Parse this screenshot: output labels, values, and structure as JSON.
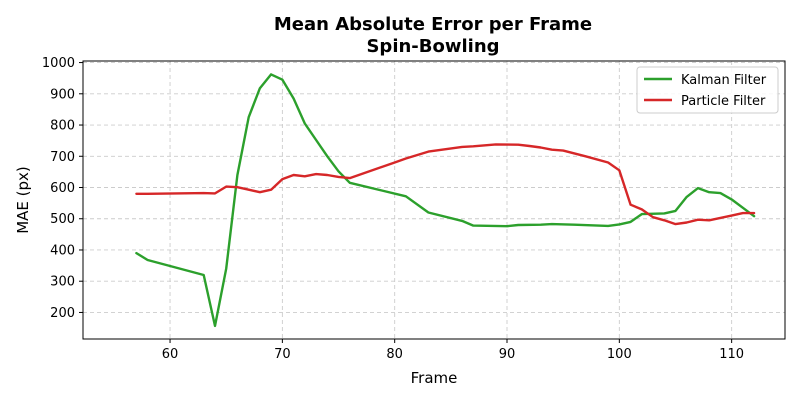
{
  "chart_data": {
    "type": "line",
    "title": "Mean Absolute Error per Frame",
    "subtitle": "Spin-Bowling",
    "xlabel": "Frame",
    "ylabel": "MAE (px)",
    "xlim": [
      52.25,
      114.75
    ],
    "ylim": [
      115,
      1005
    ],
    "xticks": [
      60,
      70,
      80,
      90,
      100,
      110
    ],
    "yticks": [
      200,
      300,
      400,
      500,
      600,
      700,
      800,
      900,
      1000
    ],
    "grid": true,
    "legend_position": "top-right",
    "series": [
      {
        "name": "Kalman Filter",
        "color": "#2ca02c",
        "points": [
          [
            57,
            390
          ],
          [
            58,
            368
          ],
          [
            63,
            320
          ],
          [
            64,
            157
          ],
          [
            65,
            340
          ],
          [
            66,
            640
          ],
          [
            67,
            825
          ],
          [
            68,
            918
          ],
          [
            69,
            962
          ],
          [
            70,
            945
          ],
          [
            71,
            885
          ],
          [
            72,
            805
          ],
          [
            73,
            752
          ],
          [
            74,
            700
          ],
          [
            75,
            652
          ],
          [
            76,
            615
          ],
          [
            81,
            572
          ],
          [
            83,
            520
          ],
          [
            86,
            493
          ],
          [
            87,
            478
          ],
          [
            90,
            476
          ],
          [
            91,
            480
          ],
          [
            93,
            481
          ],
          [
            94,
            483
          ],
          [
            96,
            481
          ],
          [
            99,
            477
          ],
          [
            100,
            482
          ],
          [
            101,
            490
          ],
          [
            102,
            515
          ],
          [
            104,
            517
          ],
          [
            105,
            525
          ],
          [
            106,
            570
          ],
          [
            107,
            598
          ],
          [
            108,
            585
          ],
          [
            109,
            582
          ],
          [
            110,
            562
          ],
          [
            111,
            535
          ],
          [
            112,
            508
          ]
        ]
      },
      {
        "name": "Particle Filter",
        "color": "#d62728",
        "points": [
          [
            57,
            580
          ],
          [
            58,
            580
          ],
          [
            63,
            582
          ],
          [
            64,
            581
          ],
          [
            65,
            603
          ],
          [
            66,
            601
          ],
          [
            67,
            593
          ],
          [
            68,
            585
          ],
          [
            69,
            593
          ],
          [
            70,
            627
          ],
          [
            71,
            640
          ],
          [
            72,
            636
          ],
          [
            73,
            643
          ],
          [
            74,
            640
          ],
          [
            75,
            634
          ],
          [
            76,
            630
          ],
          [
            80,
            680
          ],
          [
            81,
            693
          ],
          [
            83,
            715
          ],
          [
            86,
            730
          ],
          [
            87,
            732
          ],
          [
            89,
            738
          ],
          [
            91,
            737
          ],
          [
            92,
            733
          ],
          [
            93,
            728
          ],
          [
            94,
            721
          ],
          [
            95,
            718
          ],
          [
            97,
            700
          ],
          [
            99,
            680
          ],
          [
            100,
            655
          ],
          [
            101,
            545
          ],
          [
            102,
            530
          ],
          [
            103,
            505
          ],
          [
            104,
            495
          ],
          [
            105,
            483
          ],
          [
            106,
            488
          ],
          [
            107,
            497
          ],
          [
            108,
            495
          ],
          [
            110,
            510
          ],
          [
            111,
            518
          ],
          [
            112,
            518
          ]
        ]
      }
    ]
  }
}
